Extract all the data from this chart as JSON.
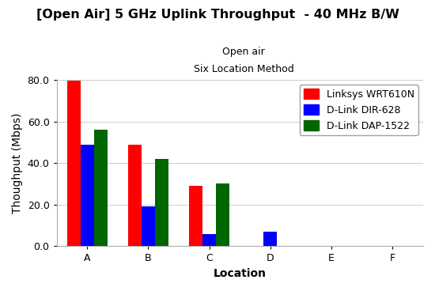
{
  "title": "[Open Air] 5 GHz Uplink Throughput  - 40 MHz B/W",
  "subtitle1": "Open air",
  "subtitle2": "Six Location Method",
  "xlabel": "Location",
  "ylabel": "Thoughput (Mbps)",
  "categories": [
    "A",
    "B",
    "C",
    "D",
    "E",
    "F"
  ],
  "series": {
    "Linksys WRT610N": {
      "color": "#ff0000",
      "values": [
        79.5,
        49.0,
        29.0,
        0.0,
        0.0,
        0.0
      ]
    },
    "D-Link DIR-628": {
      "color": "#0000ff",
      "values": [
        49.0,
        19.0,
        6.0,
        7.0,
        0.0,
        0.0
      ]
    },
    "D-Link DAP-1522": {
      "color": "#006600",
      "values": [
        56.0,
        42.0,
        30.0,
        0.0,
        0.0,
        0.0
      ]
    }
  },
  "ylim": [
    0,
    80
  ],
  "yticks": [
    0.0,
    20.0,
    40.0,
    60.0,
    80.0
  ],
  "background_color": "#ffffff",
  "title_color": "#000000",
  "title_fontsize": 11.5,
  "subtitle_fontsize": 9,
  "axis_label_fontsize": 10,
  "tick_fontsize": 9,
  "legend_fontsize": 9,
  "bar_width": 0.22,
  "legend_position": "upper right"
}
